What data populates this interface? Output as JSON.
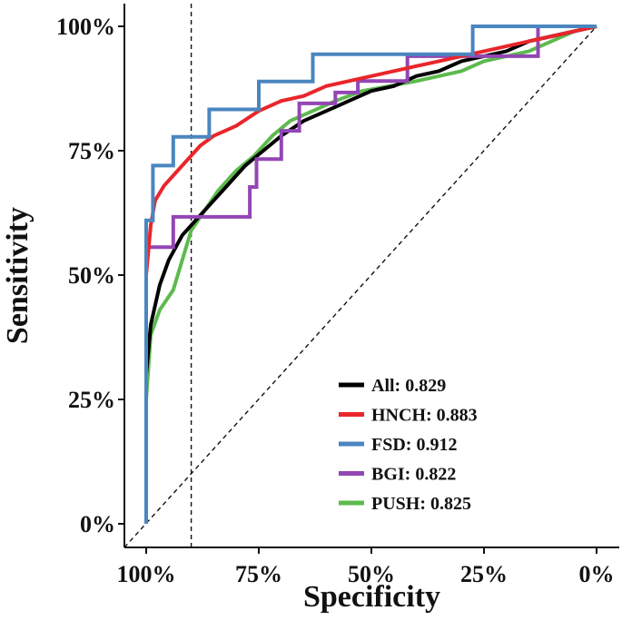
{
  "chart_data": {
    "type": "line",
    "title": "",
    "xlabel": "Specificity",
    "ylabel": "Sensitivity",
    "x_reversed": true,
    "xlim": [
      0,
      1
    ],
    "ylim": [
      0,
      1
    ],
    "x_ticks": [
      1,
      0.75,
      0.5,
      0.25,
      0
    ],
    "x_tick_labels": [
      "100%",
      "75%",
      "50%",
      "25%",
      "0%"
    ],
    "y_ticks": [
      0,
      0.25,
      0.5,
      0.75,
      1
    ],
    "y_tick_labels": [
      "0%",
      "25%",
      "50%",
      "75%",
      "100%"
    ],
    "grid": false,
    "legend_position": "bottom-right",
    "reference_lines": [
      {
        "type": "diagonal",
        "style": "dashed"
      },
      {
        "type": "vertical",
        "x": 0.9,
        "style": "dashed"
      }
    ],
    "series": [
      {
        "name": "All",
        "label": "All: 0.829",
        "auc": 0.829,
        "color": "#000000",
        "step": false,
        "points": [
          [
            1,
            0
          ],
          [
            1,
            0.3
          ],
          [
            0.99,
            0.4
          ],
          [
            0.97,
            0.48
          ],
          [
            0.95,
            0.53
          ],
          [
            0.92,
            0.58
          ],
          [
            0.9,
            0.6
          ],
          [
            0.88,
            0.62
          ],
          [
            0.85,
            0.65
          ],
          [
            0.82,
            0.68
          ],
          [
            0.78,
            0.72
          ],
          [
            0.74,
            0.75
          ],
          [
            0.7,
            0.78
          ],
          [
            0.65,
            0.81
          ],
          [
            0.6,
            0.83
          ],
          [
            0.55,
            0.85
          ],
          [
            0.5,
            0.87
          ],
          [
            0.45,
            0.88
          ],
          [
            0.4,
            0.9
          ],
          [
            0.35,
            0.91
          ],
          [
            0.3,
            0.93
          ],
          [
            0.25,
            0.94
          ],
          [
            0.2,
            0.95
          ],
          [
            0.15,
            0.97
          ],
          [
            0.1,
            0.98
          ],
          [
            0.05,
            0.99
          ],
          [
            0,
            1
          ]
        ]
      },
      {
        "name": "HNCH",
        "label": "HNCH: 0.883",
        "auc": 0.883,
        "color": "#E8262B",
        "step": false,
        "points": [
          [
            1,
            0
          ],
          [
            1,
            0.5
          ],
          [
            0.99,
            0.6
          ],
          [
            0.98,
            0.65
          ],
          [
            0.96,
            0.68
          ],
          [
            0.94,
            0.7
          ],
          [
            0.92,
            0.72
          ],
          [
            0.9,
            0.74
          ],
          [
            0.88,
            0.76
          ],
          [
            0.85,
            0.78
          ],
          [
            0.8,
            0.8
          ],
          [
            0.75,
            0.83
          ],
          [
            0.7,
            0.85
          ],
          [
            0.65,
            0.86
          ],
          [
            0.6,
            0.88
          ],
          [
            0.55,
            0.89
          ],
          [
            0.5,
            0.9
          ],
          [
            0.45,
            0.91
          ],
          [
            0.4,
            0.92
          ],
          [
            0.35,
            0.93
          ],
          [
            0.3,
            0.94
          ],
          [
            0.25,
            0.95
          ],
          [
            0.2,
            0.96
          ],
          [
            0.15,
            0.97
          ],
          [
            0.1,
            0.98
          ],
          [
            0.05,
            0.99
          ],
          [
            0,
            1
          ]
        ]
      },
      {
        "name": "FSD",
        "label": "FSD: 0.912",
        "auc": 0.912,
        "color": "#4A86C0",
        "step": true,
        "points": [
          [
            1,
            0
          ],
          [
            1,
            0.61
          ],
          [
            0.985,
            0.61
          ],
          [
            0.985,
            0.72
          ],
          [
            0.94,
            0.72
          ],
          [
            0.94,
            0.778
          ],
          [
            0.86,
            0.778
          ],
          [
            0.86,
            0.833
          ],
          [
            0.75,
            0.833
          ],
          [
            0.75,
            0.889
          ],
          [
            0.63,
            0.889
          ],
          [
            0.63,
            0.944
          ],
          [
            0.275,
            0.944
          ],
          [
            0.275,
            1
          ],
          [
            0,
            1
          ]
        ]
      },
      {
        "name": "BGI",
        "label": "BGI: 0.822",
        "auc": 0.822,
        "color": "#9346B4",
        "step": true,
        "points": [
          [
            1,
            0
          ],
          [
            1,
            0.556
          ],
          [
            0.94,
            0.556
          ],
          [
            0.94,
            0.617
          ],
          [
            0.77,
            0.617
          ],
          [
            0.77,
            0.677
          ],
          [
            0.755,
            0.677
          ],
          [
            0.755,
            0.733
          ],
          [
            0.7,
            0.733
          ],
          [
            0.7,
            0.79
          ],
          [
            0.66,
            0.79
          ],
          [
            0.66,
            0.845
          ],
          [
            0.58,
            0.845
          ],
          [
            0.58,
            0.867
          ],
          [
            0.53,
            0.867
          ],
          [
            0.53,
            0.89
          ],
          [
            0.42,
            0.89
          ],
          [
            0.42,
            0.94
          ],
          [
            0.13,
            0.94
          ],
          [
            0.13,
            1
          ],
          [
            0,
            1
          ]
        ]
      },
      {
        "name": "PUSH",
        "label": "PUSH: 0.825",
        "auc": 0.825,
        "color": "#5DBA4E",
        "step": false,
        "points": [
          [
            1,
            0
          ],
          [
            1,
            0.25
          ],
          [
            0.99,
            0.38
          ],
          [
            0.97,
            0.43
          ],
          [
            0.94,
            0.47
          ],
          [
            0.92,
            0.53
          ],
          [
            0.9,
            0.59
          ],
          [
            0.87,
            0.63
          ],
          [
            0.84,
            0.67
          ],
          [
            0.8,
            0.71
          ],
          [
            0.76,
            0.74
          ],
          [
            0.72,
            0.78
          ],
          [
            0.68,
            0.81
          ],
          [
            0.63,
            0.83
          ],
          [
            0.58,
            0.85
          ],
          [
            0.52,
            0.87
          ],
          [
            0.46,
            0.88
          ],
          [
            0.4,
            0.89
          ],
          [
            0.35,
            0.9
          ],
          [
            0.3,
            0.91
          ],
          [
            0.25,
            0.93
          ],
          [
            0.2,
            0.94
          ],
          [
            0.15,
            0.95
          ],
          [
            0.1,
            0.97
          ],
          [
            0.05,
            0.99
          ],
          [
            0,
            1
          ]
        ]
      }
    ]
  }
}
